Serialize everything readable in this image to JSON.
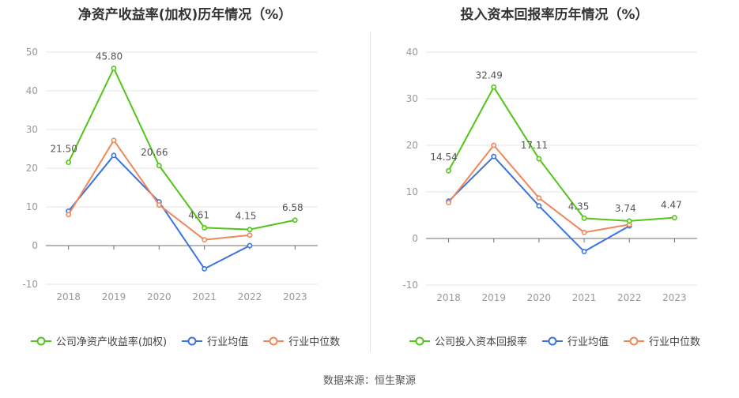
{
  "source_text": "数据来源：恒生聚源",
  "colors": {
    "company": "#52c41a",
    "industry_avg": "#3b72e0",
    "industry_median": "#f0875a",
    "grid": "#e6e6e6",
    "axis": "#999999"
  },
  "chart_data": [
    {
      "type": "line",
      "title": "净资产收益率(加权)历年情况（%）",
      "categories": [
        "2018",
        "2019",
        "2020",
        "2021",
        "2022",
        "2023"
      ],
      "ylim": [
        -10,
        50
      ],
      "yticks": [
        -10,
        0,
        10,
        20,
        30,
        40,
        50
      ],
      "grid": true,
      "legend_position": "bottom",
      "series": [
        {
          "name": "公司净资产收益率(加权)",
          "color_key": "company",
          "values": [
            21.5,
            45.8,
            20.66,
            4.61,
            4.15,
            6.58
          ],
          "labels": [
            "21.50",
            "45.80",
            "20.66",
            "4.61",
            "4.15",
            "6.58"
          ]
        },
        {
          "name": "行业均值",
          "color_key": "industry_avg",
          "values": [
            8.9,
            23.3,
            11.3,
            -6.0,
            0.0,
            null
          ]
        },
        {
          "name": "行业中位数",
          "color_key": "industry_median",
          "values": [
            8.0,
            27.2,
            10.5,
            1.5,
            2.7,
            null
          ]
        }
      ]
    },
    {
      "type": "line",
      "title": "投入资本回报率历年情况（%）",
      "categories": [
        "2018",
        "2019",
        "2020",
        "2021",
        "2022",
        "2023"
      ],
      "ylim": [
        -10,
        40
      ],
      "yticks": [
        -10,
        0,
        10,
        20,
        30,
        40
      ],
      "grid": true,
      "legend_position": "bottom",
      "series": [
        {
          "name": "公司投入资本回报率",
          "color_key": "company",
          "values": [
            14.54,
            32.49,
            17.11,
            4.35,
            3.74,
            4.47
          ],
          "labels": [
            "14.54",
            "32.49",
            "17.11",
            "4.35",
            "3.74",
            "4.47"
          ]
        },
        {
          "name": "行业均值",
          "color_key": "industry_avg",
          "values": [
            8.0,
            17.6,
            7.0,
            -2.8,
            2.7,
            null
          ]
        },
        {
          "name": "行业中位数",
          "color_key": "industry_median",
          "values": [
            7.7,
            20.0,
            8.7,
            1.3,
            3.0,
            null
          ]
        }
      ]
    }
  ]
}
